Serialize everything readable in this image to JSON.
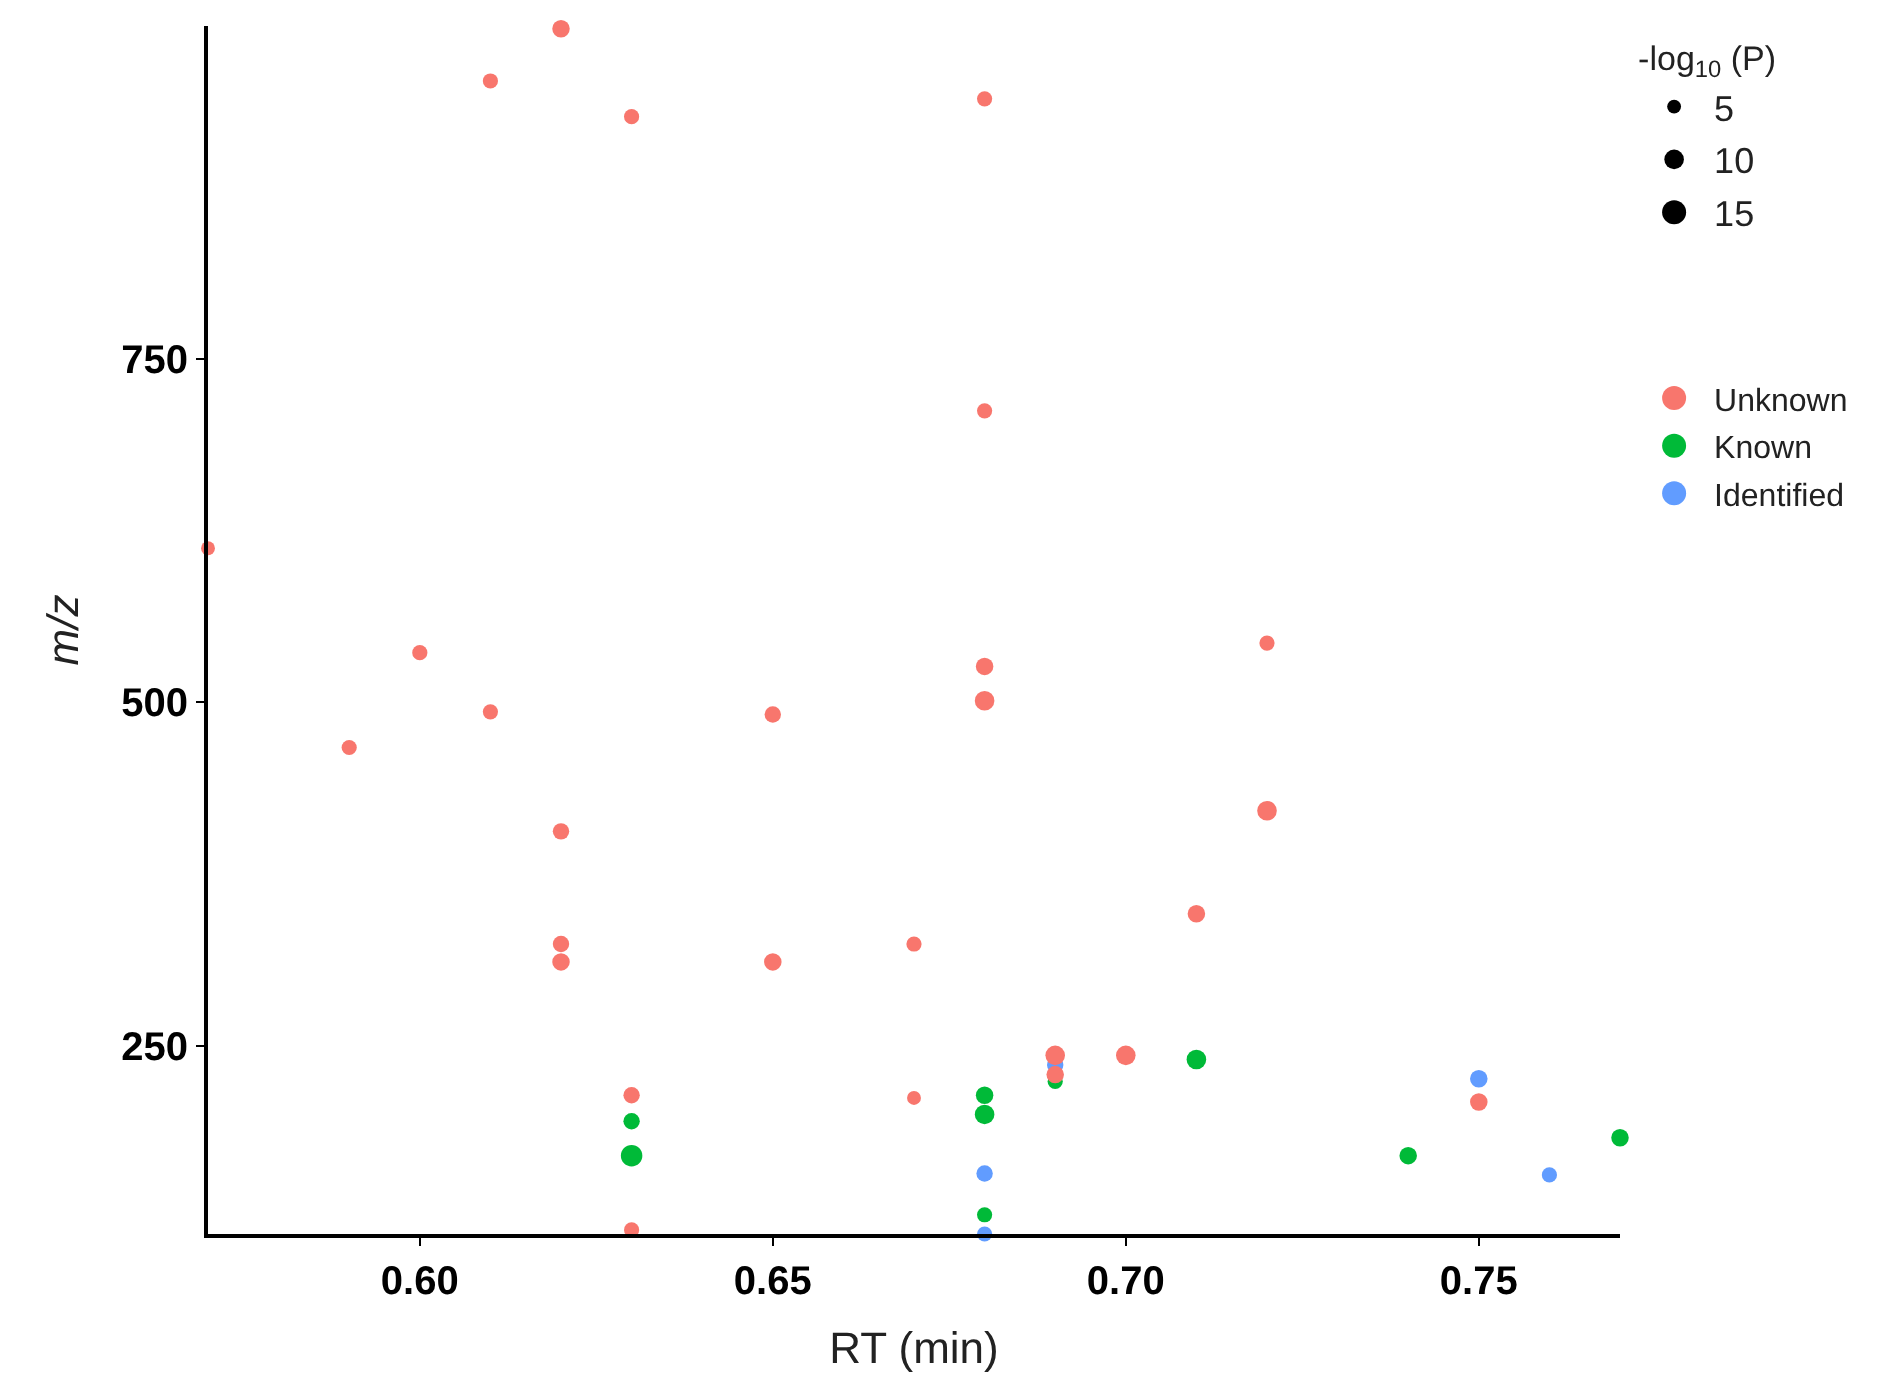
{
  "chart_data": {
    "type": "bubble",
    "xlabel": "RT (min)",
    "ylabel": "m/z",
    "legend_title": "-log$_{10}$ (P)",
    "xlim": [
      0.57,
      0.77
    ],
    "xticks": [
      {
        "value": 0.6,
        "label": "0.60"
      },
      0.65,
      {
        "value": 0.7,
        "label": "0.70"
      },
      0.75
    ],
    "ylim": [
      113,
      992
    ],
    "yticks": [
      250,
      500,
      750
    ],
    "size_legend": [
      {
        "value": 5,
        "label": "5"
      },
      {
        "value": 10,
        "label": "10"
      },
      {
        "value": 15,
        "label": "15"
      }
    ],
    "legend": "right",
    "series": [
      {
        "name": "Unknown",
        "color": "#f8766d",
        "x": [
          0.57,
          0.59,
          0.6,
          0.61,
          0.61,
          0.62,
          0.62,
          0.62,
          0.62,
          0.63,
          0.63,
          0.63,
          0.65,
          0.65,
          0.67,
          0.67,
          0.68,
          0.68,
          0.68,
          0.68,
          0.69,
          0.69,
          0.7,
          0.71,
          0.72,
          0.72,
          0.75
        ],
        "values": [
          612,
          467,
          536,
          952,
          493,
          990,
          406,
          324,
          311,
          926,
          214,
          116,
          491,
          311,
          324,
          212,
          939,
          712,
          526,
          501,
          243,
          229,
          243,
          346,
          543,
          421,
          209
        ],
        "sizes": [
          5,
          6,
          6,
          6,
          6,
          8,
          7,
          7,
          8,
          6,
          7,
          6,
          7,
          8,
          6,
          5,
          6,
          6,
          8,
          10,
          10,
          8,
          10,
          8,
          6,
          10,
          8
        ]
      },
      {
        "name": "Known",
        "color": "#00ba38",
        "x": [
          0.63,
          0.63,
          0.68,
          0.68,
          0.68,
          0.69,
          0.71,
          0.74,
          0.77
        ],
        "values": [
          195,
          170,
          214,
          200,
          127,
          224,
          240,
          170,
          183
        ],
        "sizes": [
          7,
          12,
          8,
          10,
          6,
          6,
          10,
          8,
          8
        ]
      },
      {
        "name": "Identified",
        "color": "#619cff",
        "x": [
          0.68,
          0.68,
          0.69,
          0.75,
          0.76
        ],
        "values": [
          157,
          113,
          236,
          226,
          156
        ],
        "sizes": [
          7,
          6,
          7,
          8,
          6
        ]
      }
    ]
  }
}
